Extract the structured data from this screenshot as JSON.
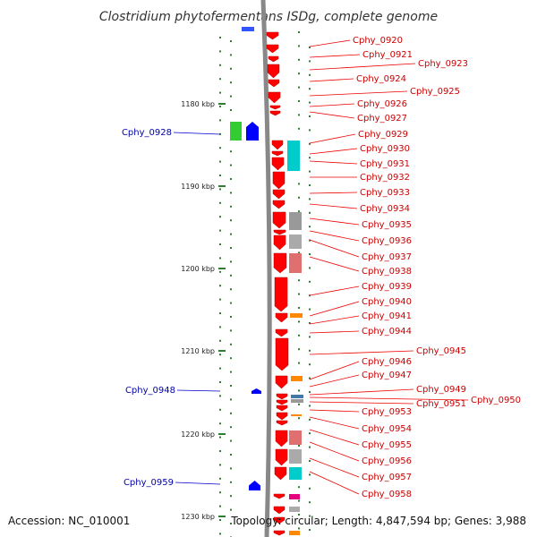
{
  "title": "Clostridium phytofermentans ISDg, complete genome",
  "footer": {
    "accession": "Accession: NC_010001",
    "topology": "Topology: circular; Length: 4,847,594 bp; Genes: 3,988"
  },
  "colors": {
    "forward_gene": "#ff0000",
    "reverse_gene": "#0000ff",
    "forward_label": "#cc0000",
    "reverse_label": "#0000aa",
    "scale_tick": "#2e7d32",
    "backbone": "#888888"
  },
  "scale_marks": [
    {
      "label": "1180 kbp"
    },
    {
      "label": "1190 kbp"
    },
    {
      "label": "1200 kbp"
    },
    {
      "label": "1210 kbp"
    },
    {
      "label": "1220 kbp"
    },
    {
      "label": "1230 kbp"
    }
  ],
  "reverse_genes": [
    {
      "label": "Cphy_0928"
    },
    {
      "label": "Cphy_0948"
    },
    {
      "label": "Cphy_0959"
    }
  ],
  "forward_genes": [
    {
      "label": "Cphy_0920"
    },
    {
      "label": "Cphy_0921"
    },
    {
      "label": "Cphy_0923"
    },
    {
      "label": "Cphy_0924"
    },
    {
      "label": "Cphy_0925"
    },
    {
      "label": "Cphy_0926"
    },
    {
      "label": "Cphy_0927"
    },
    {
      "label": "Cphy_0929"
    },
    {
      "label": "Cphy_0930"
    },
    {
      "label": "Cphy_0931"
    },
    {
      "label": "Cphy_0932"
    },
    {
      "label": "Cphy_0933"
    },
    {
      "label": "Cphy_0934"
    },
    {
      "label": "Cphy_0935"
    },
    {
      "label": "Cphy_0936"
    },
    {
      "label": "Cphy_0937"
    },
    {
      "label": "Cphy_0938"
    },
    {
      "label": "Cphy_0939"
    },
    {
      "label": "Cphy_0940"
    },
    {
      "label": "Cphy_0941"
    },
    {
      "label": "Cphy_0944"
    },
    {
      "label": "Cphy_0945"
    },
    {
      "label": "Cphy_0946"
    },
    {
      "label": "Cphy_0947"
    },
    {
      "label": "Cphy_0949"
    },
    {
      "label": "Cphy_0950"
    },
    {
      "label": "Cphy_0951"
    },
    {
      "label": "Cphy_0953"
    },
    {
      "label": "Cphy_0954"
    },
    {
      "label": "Cphy_0955"
    },
    {
      "label": "Cphy_0956"
    },
    {
      "label": "Cphy_0957"
    },
    {
      "label": "Cphy_0958"
    }
  ]
}
